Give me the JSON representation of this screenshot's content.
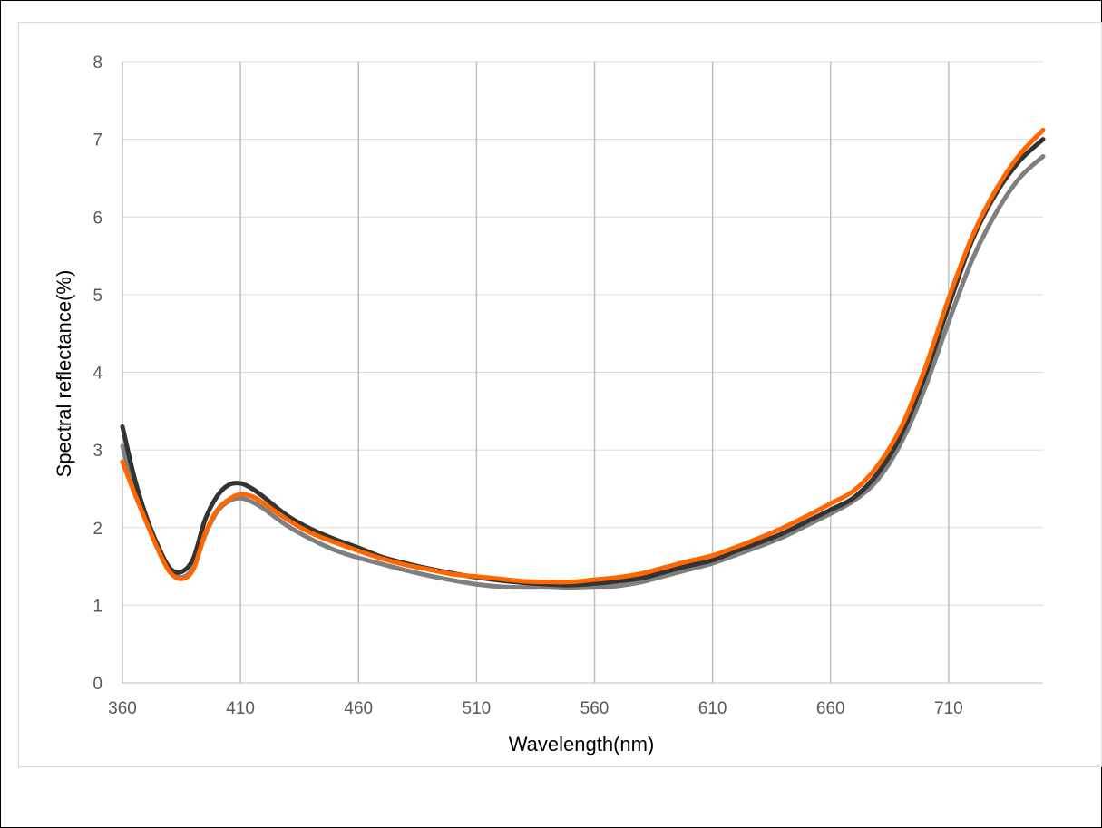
{
  "chart_data": {
    "type": "line",
    "title": "",
    "xlabel": "Wavelength(nm)",
    "ylabel": "Spectral reflectance(%)",
    "xlim": [
      360,
      750
    ],
    "ylim": [
      0,
      8
    ],
    "x_ticks": [
      360,
      410,
      460,
      510,
      560,
      610,
      660,
      710
    ],
    "y_ticks": [
      0,
      1,
      2,
      3,
      4,
      5,
      6,
      7,
      8
    ],
    "grid": true,
    "legend": "none",
    "x": [
      360,
      365,
      370,
      375,
      380,
      385,
      390,
      395,
      400,
      405,
      410,
      415,
      420,
      430,
      440,
      450,
      460,
      470,
      480,
      490,
      500,
      510,
      520,
      530,
      540,
      550,
      560,
      570,
      580,
      590,
      600,
      610,
      620,
      630,
      640,
      650,
      660,
      670,
      680,
      690,
      700,
      710,
      720,
      730,
      740,
      750
    ],
    "series": [
      {
        "color": "#ff6600",
        "values": [
          2.85,
          2.45,
          2.08,
          1.72,
          1.43,
          1.34,
          1.46,
          1.92,
          2.22,
          2.36,
          2.43,
          2.4,
          2.31,
          2.1,
          1.93,
          1.81,
          1.7,
          1.6,
          1.52,
          1.46,
          1.4,
          1.37,
          1.34,
          1.31,
          1.3,
          1.3,
          1.33,
          1.36,
          1.41,
          1.49,
          1.57,
          1.64,
          1.75,
          1.87,
          2.0,
          2.15,
          2.31,
          2.48,
          2.8,
          3.3,
          4.05,
          4.95,
          5.75,
          6.35,
          6.8,
          7.12
        ]
      },
      {
        "color": "#333333",
        "values": [
          3.3,
          2.65,
          2.15,
          1.77,
          1.48,
          1.43,
          1.6,
          2.1,
          2.4,
          2.55,
          2.57,
          2.5,
          2.39,
          2.15,
          1.98,
          1.85,
          1.74,
          1.62,
          1.54,
          1.47,
          1.41,
          1.36,
          1.32,
          1.29,
          1.27,
          1.26,
          1.28,
          1.31,
          1.35,
          1.43,
          1.51,
          1.58,
          1.7,
          1.81,
          1.93,
          2.08,
          2.23,
          2.39,
          2.7,
          3.2,
          3.95,
          4.85,
          5.7,
          6.3,
          6.72,
          7.0
        ]
      },
      {
        "color": "#7f7f7f",
        "values": [
          3.05,
          2.5,
          2.1,
          1.75,
          1.45,
          1.36,
          1.48,
          1.9,
          2.2,
          2.34,
          2.38,
          2.33,
          2.24,
          2.02,
          1.85,
          1.71,
          1.61,
          1.53,
          1.45,
          1.38,
          1.32,
          1.27,
          1.24,
          1.23,
          1.23,
          1.22,
          1.23,
          1.25,
          1.3,
          1.38,
          1.46,
          1.54,
          1.65,
          1.76,
          1.88,
          2.03,
          2.18,
          2.35,
          2.62,
          3.1,
          3.8,
          4.65,
          5.45,
          6.05,
          6.5,
          6.78
        ]
      }
    ]
  }
}
